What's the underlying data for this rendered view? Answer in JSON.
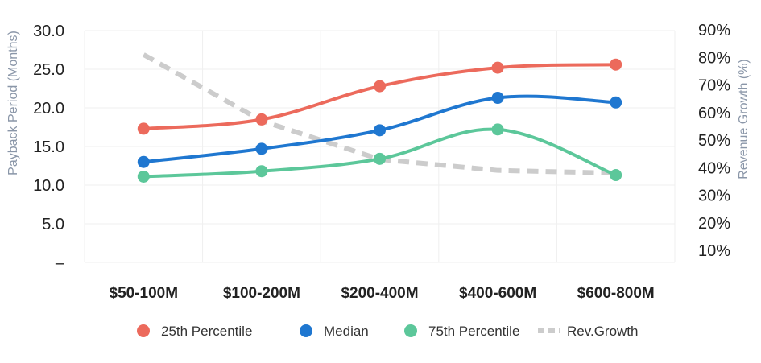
{
  "chart_data": {
    "type": "line",
    "categories": [
      "$50-100M",
      "$100-200M",
      "$200-400M",
      "$400-600M",
      "$600-800M"
    ],
    "series": [
      {
        "name": "25th Percentile",
        "axis": "left",
        "color": "#ec6a5c",
        "values": [
          17.3,
          18.5,
          22.8,
          25.2,
          25.6
        ]
      },
      {
        "name": "Median",
        "axis": "left",
        "color": "#1f77d0",
        "values": [
          13.0,
          14.7,
          17.1,
          21.3,
          20.7
        ]
      },
      {
        "name": "75th Percentile",
        "axis": "left",
        "color": "#5cc79a",
        "values": [
          11.1,
          11.8,
          13.4,
          17.2,
          11.3
        ]
      },
      {
        "name": "Rev.Growth",
        "axis": "right",
        "color": "#cccccc",
        "style": "dashed",
        "values": [
          81,
          57,
          43,
          39,
          38
        ]
      }
    ],
    "ylabel": "Payback Period (Months)",
    "y2label": "Revenue Growth (%)",
    "y_ticks": [
      "–",
      "5.0",
      "10.0",
      "15.0",
      "20.0",
      "25.0",
      "30.0"
    ],
    "y_tick_values": [
      0,
      5,
      10,
      15,
      20,
      25,
      30
    ],
    "ylim": [
      0,
      30
    ],
    "y2_ticks": [
      "10%",
      "20%",
      "30%",
      "40%",
      "50%",
      "60%",
      "70%",
      "80%",
      "90%"
    ],
    "y2_tick_values": [
      10,
      20,
      30,
      40,
      50,
      60,
      70,
      80,
      90
    ],
    "y2lim": [
      10,
      90
    ],
    "grid": true,
    "legend_position": "bottom"
  }
}
